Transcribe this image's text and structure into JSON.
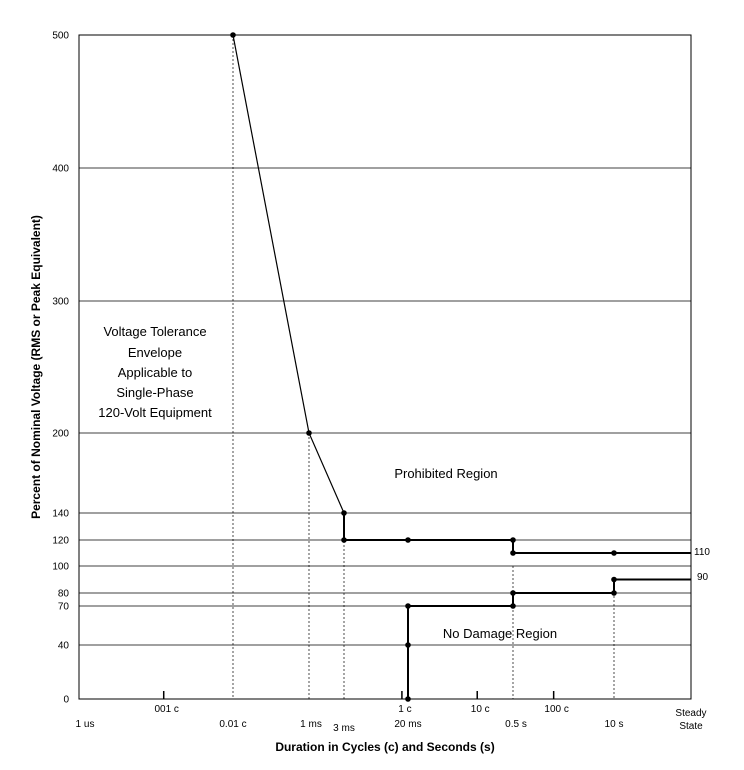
{
  "chart_data": {
    "type": "line",
    "title": "",
    "xlabel": "Duration in Cycles (c) and Seconds (s)",
    "ylabel": "Percent of Nominal Voltage (RMS or Peak Equivalent)",
    "x_scale": "log",
    "grid": true,
    "y_ticks": [
      0,
      40,
      70,
      80,
      90,
      100,
      110,
      120,
      140,
      200,
      300,
      400,
      500
    ],
    "y_tick_labels": [
      "0",
      "40",
      "70",
      "80",
      "",
      "100",
      "",
      "120",
      "140",
      "200",
      "300",
      "400",
      "500"
    ],
    "x_ticks": [
      {
        "label": "1 us",
        "seconds": 1e-06
      },
      {
        "label": "001 c",
        "seconds": 1.67e-05
      },
      {
        "label": "0.01 c",
        "seconds": 0.000167
      },
      {
        "label": "1 ms",
        "seconds": 0.001
      },
      {
        "label": "3 ms",
        "seconds": 0.003
      },
      {
        "label": "1 c",
        "seconds": 0.0167
      },
      {
        "label": "20 ms",
        "seconds": 0.02
      },
      {
        "label": "10 c",
        "seconds": 0.167
      },
      {
        "label": "0.5 s",
        "seconds": 0.5
      },
      {
        "label": "100 c",
        "seconds": 1.67
      },
      {
        "label": "10 s",
        "seconds": 10
      },
      {
        "label": "Steady State",
        "seconds": 100
      }
    ],
    "series": [
      {
        "name": "",
        "points": [
          {
            "x": 0.000167,
            "y": 500
          },
          {
            "x": 0.001,
            "y": 200
          },
          {
            "x": 0.003,
            "y": 140
          },
          {
            "x": 0.003,
            "y": 120
          },
          {
            "x": 0.02,
            "y": 120
          },
          {
            "x": 0.5,
            "y": 120
          },
          {
            "x": 0.5,
            "y": 110
          },
          {
            "x": 10,
            "y": 110
          },
          {
            "x": 100,
            "y": 110
          }
        ]
      },
      {
        "name": "",
        "points": [
          {
            "x": 0.02,
            "y": 0
          },
          {
            "x": 0.02,
            "y": 40
          },
          {
            "x": 0.02,
            "y": 70
          },
          {
            "x": 0.5,
            "y": 70
          },
          {
            "x": 0.5,
            "y": 80
          },
          {
            "x": 10,
            "y": 80
          },
          {
            "x": 10,
            "y": 90
          },
          {
            "x": 100,
            "y": 90
          }
        ]
      }
    ],
    "annotations": [
      {
        "text": "110",
        "anchor": "right-end-upper"
      },
      {
        "text": "90",
        "anchor": "right-end-lower"
      }
    ],
    "regions": {
      "envelope": [
        "Voltage Tolerance",
        "Envelope",
        "Applicable to",
        "Single-Phase",
        "120-Volt Equipment"
      ],
      "prohibited": "Prohibited Region",
      "no_damage": "No Damage Region"
    }
  }
}
